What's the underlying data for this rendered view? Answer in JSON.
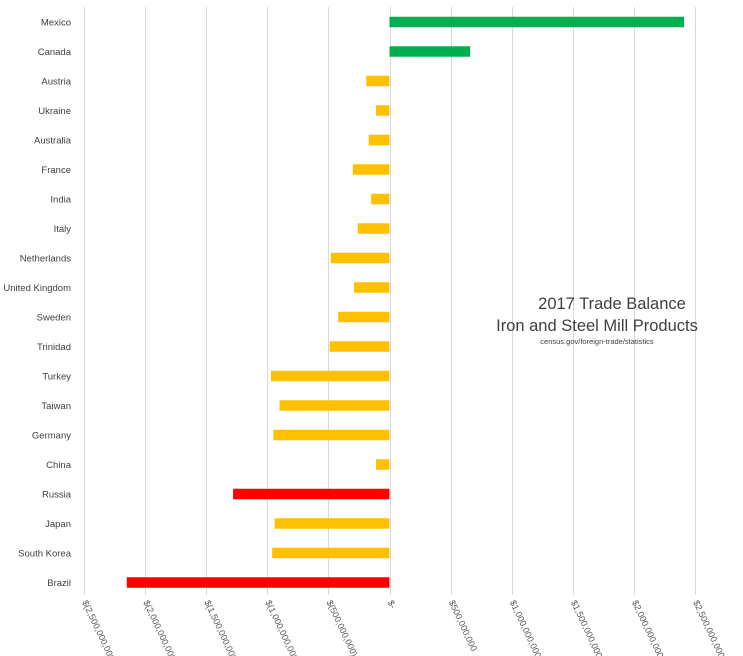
{
  "chart_data": {
    "type": "bar",
    "orientation": "horizontal",
    "title_lines": [
      "2017 Trade Balance",
      "Iron and Steel Mill Products"
    ],
    "subtitle": "census.gov/foreign-trade/statistics",
    "xlabel": "",
    "ylabel": "",
    "xlim": [
      -2500000000,
      2500000000
    ],
    "grid": true,
    "legend": "none",
    "x_ticks": [
      -2500000000,
      -2000000000,
      -1500000000,
      -1000000000,
      -500000000,
      0,
      500000000,
      1000000000,
      1500000000,
      2000000000,
      2500000000
    ],
    "x_tick_labels": [
      "$(2,500,000,000)",
      "$(2,000,000,000)",
      "$(1,500,000,000)",
      "$(1,000,000,000)",
      "$(500,000,000)",
      "$-",
      "$500,000,000",
      "$1,000,000,000",
      "$1,500,000,000",
      "$2,000,000,000",
      "$2,500,000,000"
    ],
    "categories": [
      "Mexico",
      "Canada",
      "Austria",
      "Ukraine",
      "Australia",
      "France",
      "India",
      "Italy",
      "Netherlands",
      "United Kingdom",
      "Sweden",
      "Trinidad",
      "Turkey",
      "Taiwan",
      "Germany",
      "China",
      "Russia",
      "Japan",
      "South Korea",
      "Brazil"
    ],
    "values": [
      2410000000,
      660000000,
      -190000000,
      -110000000,
      -170000000,
      -300000000,
      -150000000,
      -260000000,
      -480000000,
      -290000000,
      -420000000,
      -490000000,
      -970000000,
      -900000000,
      -950000000,
      -110000000,
      -1280000000,
      -940000000,
      -960000000,
      -2150000000
    ],
    "colors": [
      "#00b050",
      "#00b050",
      "#ffc000",
      "#ffc000",
      "#ffc000",
      "#ffc000",
      "#ffc000",
      "#ffc000",
      "#ffc000",
      "#ffc000",
      "#ffc000",
      "#ffc000",
      "#ffc000",
      "#ffc000",
      "#ffc000",
      "#ffc000",
      "#ff0000",
      "#ffc000",
      "#ffc000",
      "#ff0000"
    ]
  }
}
